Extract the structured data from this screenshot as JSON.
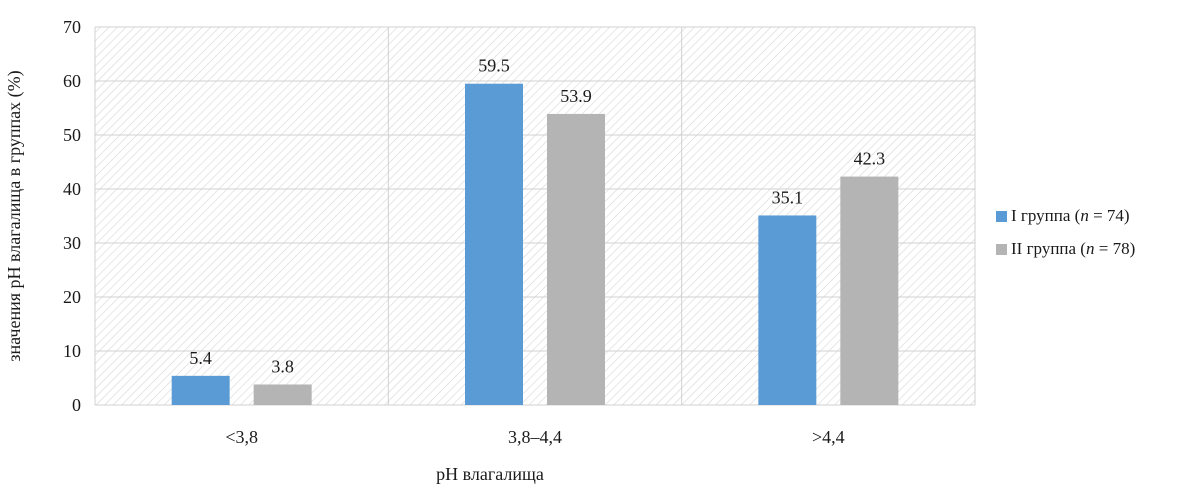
{
  "chart_data": {
    "type": "bar",
    "categories": [
      "<3,8",
      "3,8–4,4",
      ">4,4"
    ],
    "series": [
      {
        "name": "I группа (n = 74)",
        "legend_text": "I группа (",
        "legend_n": "n",
        "legend_rest": " = 74)",
        "color": "#5b9bd5",
        "values": [
          5.4,
          59.5,
          35.1
        ],
        "labels": [
          "5.4",
          "59.5",
          "35.1"
        ]
      },
      {
        "name": "II группа (n = 78)",
        "legend_text": "II группа (",
        "legend_n": "n",
        "legend_rest": " = 78)",
        "color": "#b4b4b4",
        "values": [
          3.8,
          53.9,
          42.3
        ],
        "labels": [
          "3.8",
          "53.9",
          "42.3"
        ]
      }
    ],
    "ylim": [
      0,
      70
    ],
    "yticks": [
      "0",
      "10",
      "20",
      "30",
      "40",
      "50",
      "60",
      "70"
    ],
    "xlabel": "pH влагалища",
    "ylabel": "значения pH влагалища в группах (%)",
    "grid": true,
    "plot_background": "hatched",
    "legend_position": "right"
  }
}
